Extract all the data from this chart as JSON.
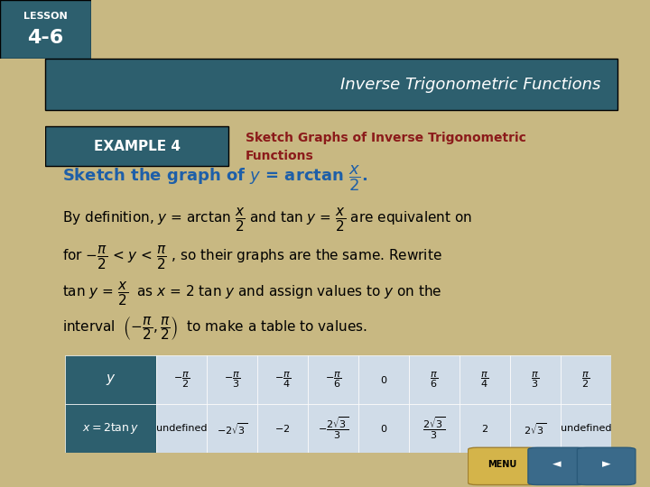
{
  "bg_color": "#c8b882",
  "slide_bg": "#ffffff",
  "header_bg": "#4a7a8a",
  "example_label": "EXAMPLE 4",
  "example_label_bg": "#4a7a8a",
  "example_label_color": "#ffffff",
  "title_text": "Sketch Graphs of Inverse Trigonometric\nFunctions",
  "title_color": "#8b1a1a",
  "top_banner_bg": "#2d5f6e",
  "top_banner_text": "Inverse Trigonometric Functions",
  "lesson_box_bg": "#2d5f6e",
  "lesson_label": "LESSON\n4-6",
  "heading_text": "Sketch the graph of",
  "heading_formula": "y = arctan ½ x over 2",
  "body_color": "#000000",
  "blue_color": "#1e5fa8",
  "table_header_bg": "#2d5f6e",
  "table_header_fg": "#ffffff",
  "table_row_bg": "#d0dce8",
  "table_row_fg": "#000000",
  "table_y_values": [
    "-π/2",
    "-π/3",
    "-π/4",
    "-π/6",
    "0",
    "π/6",
    "π/4",
    "π/3",
    "π/2"
  ],
  "table_x_values": [
    "undefined",
    "-2√3",
    "-2",
    "-2√3/3",
    "0",
    "2√3/3",
    "2",
    "2√3",
    "undefined"
  ]
}
